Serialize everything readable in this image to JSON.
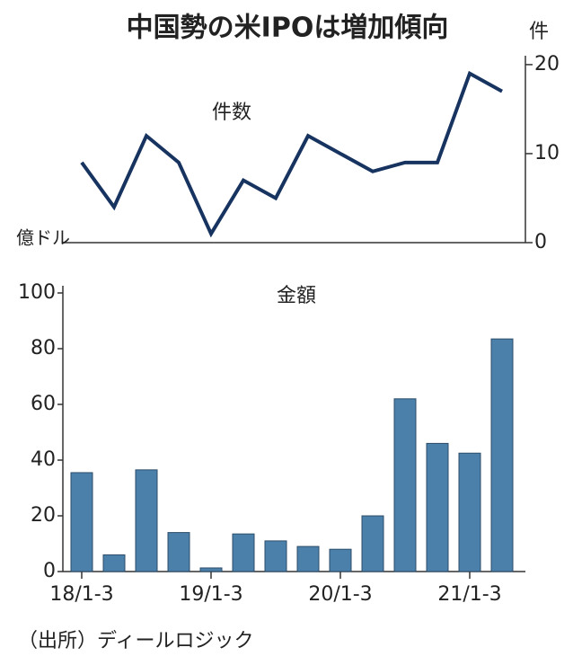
{
  "title": "中国勢の米IPOは増加傾向",
  "source": "（出所）ディールロジック",
  "chart_data": [
    {
      "type": "line",
      "title": "件数",
      "y2label": "件",
      "color": "#17335f",
      "series": [
        {
          "name": null,
          "color": "#17335f",
          "axis": "y2",
          "values": [
            9,
            4,
            12,
            9,
            1,
            7,
            5,
            12,
            10,
            8,
            9,
            9,
            19,
            17
          ]
        }
      ],
      "y2lim": [
        0,
        21
      ],
      "y2ticks": [
        0,
        10,
        20
      ]
    },
    {
      "type": "bar",
      "title": "金額",
      "ylabel": "億ドル",
      "color": "#4a80aa",
      "categories": [
        "18/1-3",
        null,
        null,
        null,
        "19/1-3",
        null,
        null,
        null,
        "20/1-3",
        null,
        null,
        null,
        "21/1-3",
        null
      ],
      "values": [
        35.5,
        6,
        36.5,
        14,
        1.3,
        13.5,
        11,
        9,
        8,
        20,
        62,
        46,
        42.5,
        83.5
      ],
      "ylim": [
        0,
        100
      ],
      "yticks": [
        0,
        20,
        40,
        60,
        80,
        100
      ]
    }
  ]
}
